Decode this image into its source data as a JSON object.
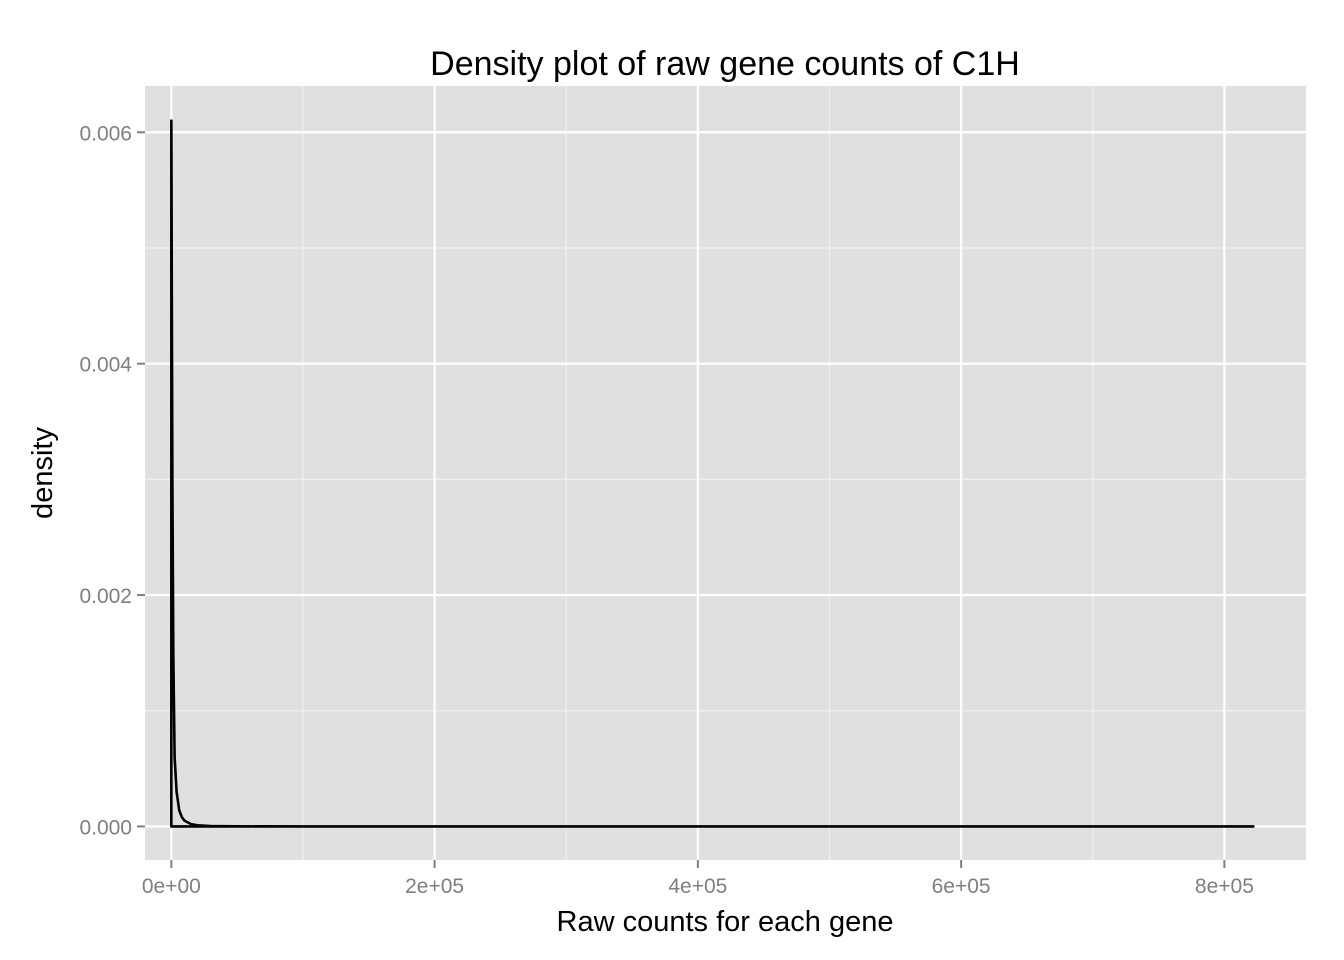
{
  "chart_data": {
    "type": "area",
    "title": "Density plot of raw gene counts of C1H",
    "xlabel": "Raw counts for each gene",
    "ylabel": "density",
    "xlim": [
      -20000,
      862000
    ],
    "ylim": [
      -0.00029,
      0.0064
    ],
    "x_ticks": [
      {
        "value": 0,
        "label": "0e+00"
      },
      {
        "value": 200000,
        "label": "2e+05"
      },
      {
        "value": 400000,
        "label": "4e+05"
      },
      {
        "value": 600000,
        "label": "6e+05"
      },
      {
        "value": 800000,
        "label": "8e+05"
      }
    ],
    "x_minor_ticks": [
      100000,
      300000,
      500000,
      700000
    ],
    "y_ticks": [
      {
        "value": 0,
        "label": "0.000"
      },
      {
        "value": 0.002,
        "label": "0.002"
      },
      {
        "value": 0.004,
        "label": "0.004"
      },
      {
        "value": 0.006,
        "label": "0.006"
      }
    ],
    "y_minor_ticks": [
      0.001,
      0.003,
      0.005
    ],
    "grid": true,
    "background_color": "#e0e0e0",
    "grid_color": "#ffffff",
    "line_color": "#000000",
    "series": [
      {
        "x": [
          0,
          100,
          400,
          800,
          1500,
          2500,
          4000,
          6000,
          8000,
          10000,
          15000,
          20000,
          30000,
          50000,
          100000,
          200000,
          400000,
          600000,
          822000
        ],
        "values": [
          0.0061,
          0.0058,
          0.0045,
          0.003,
          0.0015,
          0.0006,
          0.0003,
          0.00014,
          8e-05,
          5e-05,
          2e-05,
          1e-05,
          4e-06,
          1e-06,
          0,
          0,
          0,
          0,
          0
        ]
      }
    ]
  }
}
